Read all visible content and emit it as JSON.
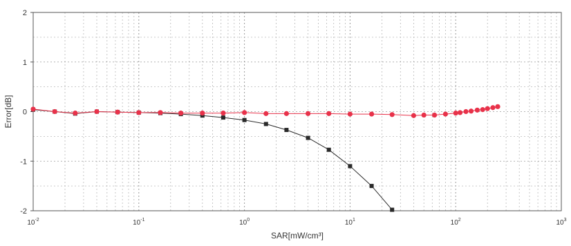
{
  "chart_data": {
    "type": "scatter",
    "xlabel": "SAR[mW/cm³]",
    "ylabel": "Error[dB]",
    "x_scale": "log",
    "xlim": [
      0.01,
      1000
    ],
    "ylim": [
      -2,
      2
    ],
    "x_ticks": [
      {
        "value": 0.01,
        "base": "10",
        "exp": "-2"
      },
      {
        "value": 0.1,
        "base": "10",
        "exp": "-1"
      },
      {
        "value": 1,
        "base": "10",
        "exp": "0"
      },
      {
        "value": 10,
        "base": "10",
        "exp": "1"
      },
      {
        "value": 100,
        "base": "10",
        "exp": "2"
      },
      {
        "value": 1000,
        "base": "10",
        "exp": "3"
      }
    ],
    "y_ticks": [
      {
        "value": 2,
        "label": "2"
      },
      {
        "value": 1,
        "label": "1"
      },
      {
        "value": 0,
        "label": "0"
      },
      {
        "value": -1,
        "label": "-1"
      },
      {
        "value": -2,
        "label": "-2"
      }
    ],
    "grid": true,
    "series": [
      {
        "color": "#2a2a2a",
        "marker": "square",
        "x": [
          0.01,
          0.016,
          0.025,
          0.04,
          0.063,
          0.1,
          0.16,
          0.25,
          0.4,
          0.63,
          1.0,
          1.6,
          2.5,
          4.0,
          6.3,
          10,
          16,
          25
        ],
        "y": [
          0.04,
          0.0,
          -0.04,
          0.0,
          -0.01,
          -0.02,
          -0.03,
          -0.05,
          -0.08,
          -0.12,
          -0.17,
          -0.25,
          -0.37,
          -0.53,
          -0.77,
          -1.1,
          -1.5,
          -1.98
        ]
      },
      {
        "color": "#e8324a",
        "marker": "circle",
        "x": [
          0.01,
          0.016,
          0.025,
          0.04,
          0.063,
          0.1,
          0.16,
          0.25,
          0.4,
          0.63,
          1.0,
          1.6,
          2.5,
          4.0,
          6.3,
          10,
          16,
          25,
          40,
          50,
          63,
          80,
          100,
          110,
          125,
          140,
          160,
          180,
          200,
          225,
          250
        ],
        "y": [
          0.05,
          0.0,
          -0.03,
          0.0,
          -0.01,
          -0.02,
          -0.02,
          -0.03,
          -0.03,
          -0.03,
          -0.02,
          -0.04,
          -0.04,
          -0.04,
          -0.04,
          -0.05,
          -0.05,
          -0.06,
          -0.08,
          -0.07,
          -0.07,
          -0.05,
          -0.03,
          -0.02,
          0.0,
          0.01,
          0.03,
          0.04,
          0.06,
          0.08,
          0.1
        ]
      }
    ]
  }
}
